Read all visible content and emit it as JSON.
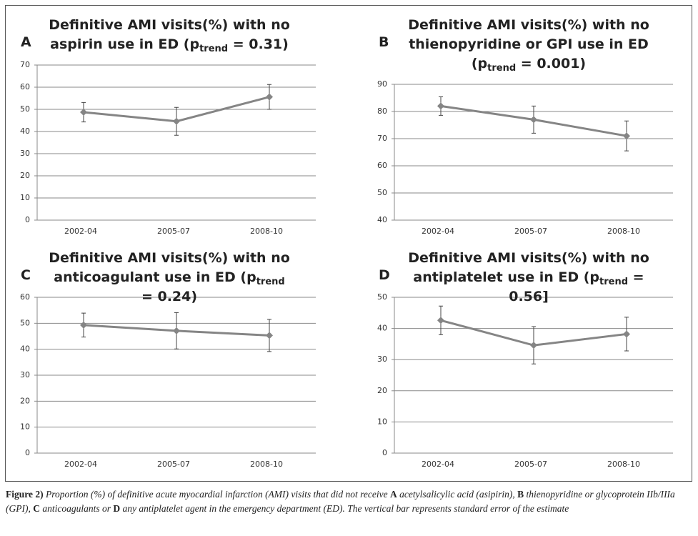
{
  "chart_data": [
    {
      "type": "line",
      "panel": "A",
      "title": [
        "Definitive AMI visits(%) with no aspirin use in ED (p",
        "trend",
        " = 0.31)"
      ],
      "categories": [
        "2002-04",
        "2005-07",
        "2008-10"
      ],
      "series": [
        {
          "values": [
            48.7,
            44.6,
            55.6
          ],
          "errors": [
            4.4,
            6.3,
            5.6
          ],
          "color": "#858585"
        }
      ],
      "ylim": [
        0,
        70
      ],
      "yticks": [
        0,
        10,
        20,
        30,
        40,
        50,
        60,
        70
      ],
      "grid": true
    },
    {
      "type": "line",
      "panel": "B",
      "title": [
        "Definitive AMI visits(%) with no thienopyridine or GPI use in ED (p",
        "trend",
        " = 0.001)"
      ],
      "categories": [
        "2002-04",
        "2005-07",
        "2008-10"
      ],
      "series": [
        {
          "values": [
            82,
            77,
            71
          ],
          "errors": [
            3.4,
            5,
            5.5
          ],
          "color": "#858585"
        }
      ],
      "ylim": [
        40,
        90
      ],
      "yticks": [
        40,
        50,
        60,
        70,
        80,
        90
      ],
      "grid": true
    },
    {
      "type": "line",
      "panel": "C",
      "title": [
        "Definitive AMI visits(%) with no anticoagulant use in ED (p",
        "trend",
        " = 0.24)"
      ],
      "categories": [
        "2002-04",
        "2005-07",
        "2008-10"
      ],
      "series": [
        {
          "values": [
            49.3,
            47.1,
            45.3
          ],
          "errors": [
            4.6,
            7,
            6.2
          ],
          "color": "#858585"
        }
      ],
      "ylim": [
        0,
        60
      ],
      "yticks": [
        0,
        10,
        20,
        30,
        40,
        50,
        60
      ],
      "grid": true
    },
    {
      "type": "line",
      "panel": "D",
      "title": [
        "Definitive AMI visits(%) with no antiplatelet use in ED (p",
        "trend",
        " = 0.56]"
      ],
      "categories": [
        "2002-04",
        "2005-07",
        "2008-10"
      ],
      "series": [
        {
          "values": [
            42.6,
            34.6,
            38.2
          ],
          "errors": [
            4.6,
            6,
            5.4
          ],
          "color": "#858585"
        }
      ],
      "ylim": [
        0,
        50
      ],
      "yticks": [
        0,
        10,
        20,
        30,
        40,
        50
      ],
      "grid": true
    }
  ],
  "caption": [
    {
      "text": "Figure 2)",
      "bold": true
    },
    {
      "text": " Proportion (%) of definitive acute myocardial infarction (AMI) visits that did not receive ",
      "bold": false
    },
    {
      "text": "A",
      "bold": true
    },
    {
      "text": " acetylsalicylic acid (asipirin), ",
      "bold": false
    },
    {
      "text": "B",
      "bold": true
    },
    {
      "text": " thienopyridine or glycoprotein IIb/IIIa (GPI), ",
      "bold": false
    },
    {
      "text": "C",
      "bold": true
    },
    {
      "text": " anticoagulants or ",
      "bold": false
    },
    {
      "text": "D",
      "bold": true
    },
    {
      "text": " any antiplatelet agent in the emergency department (ED). The vertical bar represents standard error of the estimate",
      "bold": false
    }
  ]
}
